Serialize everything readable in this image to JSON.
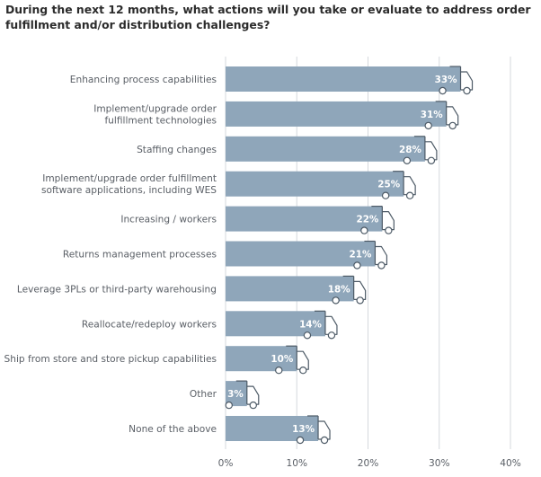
{
  "title": "During the next 12 months, what actions will you take or evaluate to address order fulfillment and/or distribution challenges?",
  "chart_data": {
    "type": "bar",
    "orientation": "horizontal",
    "title": "During the next 12 months, what actions will you take or evaluate to address order fulfillment and/or distribution challenges?",
    "xlabel": "",
    "ylabel": "",
    "xlim": [
      0,
      40
    ],
    "ticks": [
      0,
      10,
      20,
      30,
      40
    ],
    "tick_labels": [
      "0%",
      "10%",
      "20%",
      "30%",
      "40%"
    ],
    "grid": true,
    "categories": [
      [
        "Enhancing process capabilities"
      ],
      [
        "Implement/upgrade order",
        "fulfillment technologies"
      ],
      [
        "Staffing changes"
      ],
      [
        "Implement/upgrade order fulfillment",
        "software applications, including WES"
      ],
      [
        "Increasing / workers"
      ],
      [
        "Returns management processes"
      ],
      [
        "Leverage 3PLs or third-party warehousing"
      ],
      [
        "Reallocate/redeploy workers"
      ],
      [
        "Ship from store and store pickup capabilities"
      ],
      [
        "Other"
      ],
      [
        "None of the above"
      ]
    ],
    "values": [
      33,
      31,
      28,
      25,
      22,
      21,
      18,
      14,
      10,
      3,
      13
    ],
    "value_labels": [
      "33%",
      "31%",
      "28%",
      "25%",
      "22%",
      "21%",
      "18%",
      "14%",
      "10%",
      "3%",
      "13%"
    ],
    "colors": {
      "bar": "#8fa6ba",
      "truck_stroke": "#4d5a66",
      "grid": "#d5d9dd",
      "text": "#5a5f66"
    }
  }
}
